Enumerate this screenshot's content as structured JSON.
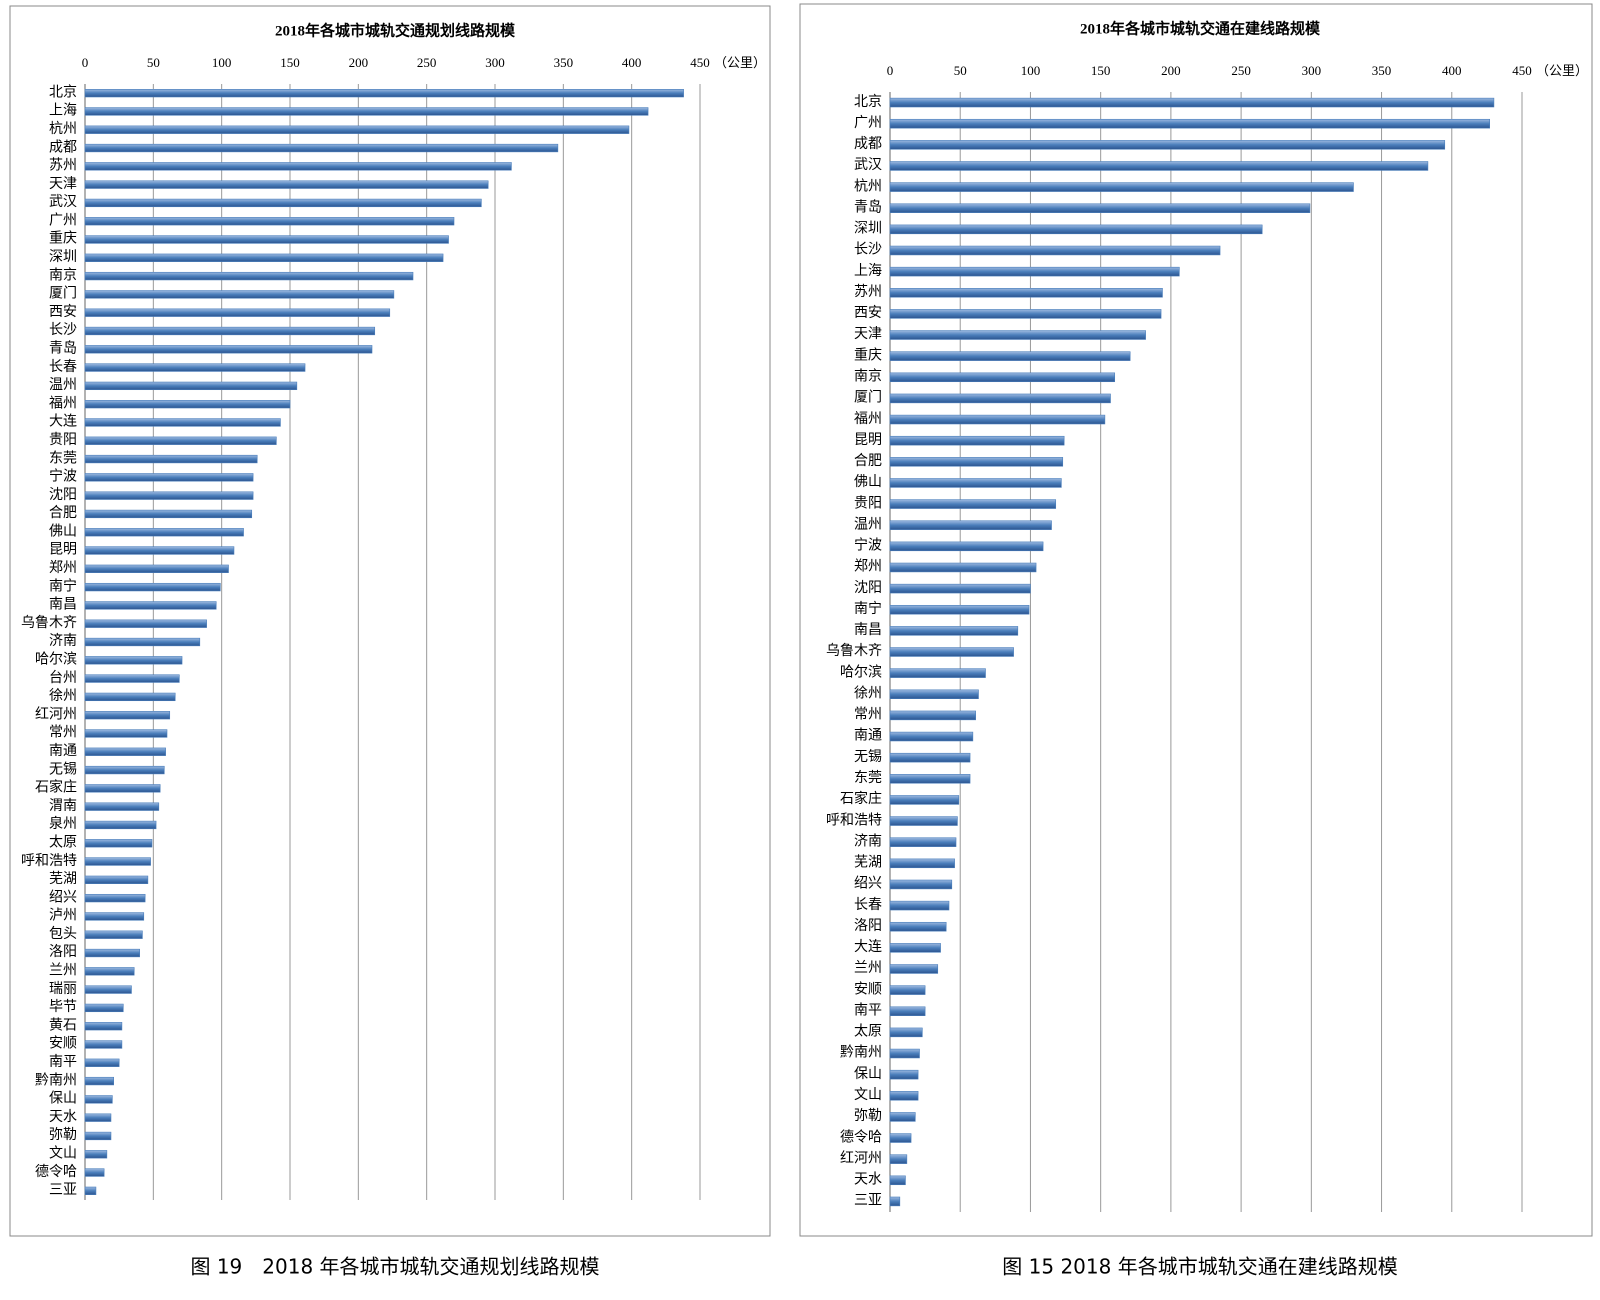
{
  "chart_data": [
    {
      "type": "bar",
      "orientation": "horizontal",
      "title": "2018年各城市城轨交通规划线路规模",
      "caption": "图 19　2018 年各城市城轨交通规划线路规模",
      "unit_label": "（公里）",
      "color": "#4a7ebb",
      "categories": [
        "北京",
        "上海",
        "杭州",
        "成都",
        "苏州",
        "天津",
        "武汉",
        "广州",
        "重庆",
        "深圳",
        "南京",
        "厦门",
        "西安",
        "长沙",
        "青岛",
        "长春",
        "温州",
        "福州",
        "大连",
        "贵阳",
        "东莞",
        "宁波",
        "沈阳",
        "合肥",
        "佛山",
        "昆明",
        "郑州",
        "南宁",
        "南昌",
        "乌鲁木齐",
        "济南",
        "哈尔滨",
        "台州",
        "徐州",
        "红河州",
        "常州",
        "南通",
        "无锡",
        "石家庄",
        "渭南",
        "泉州",
        "太原",
        "呼和浩特",
        "芜湖",
        "绍兴",
        "泸州",
        "包头",
        "洛阳",
        "兰州",
        "瑞丽",
        "毕节",
        "黄石",
        "安顺",
        "南平",
        "黔南州",
        "保山",
        "天水",
        "弥勒",
        "文山",
        "德令哈",
        "三亚"
      ],
      "values": [
        438,
        412,
        398,
        346,
        312,
        295,
        290,
        270,
        266,
        262,
        240,
        226,
        223,
        212,
        210,
        161,
        155,
        150,
        143,
        140,
        126,
        123,
        123,
        122,
        116,
        109,
        105,
        99,
        96,
        89,
        84,
        71,
        69,
        66,
        62,
        60,
        59,
        58,
        55,
        54,
        52,
        49,
        48,
        46,
        44,
        43,
        42,
        40,
        36,
        34,
        28,
        27,
        27,
        25,
        21,
        20,
        19,
        19,
        16,
        14,
        8
      ],
      "xlim": [
        0,
        450
      ],
      "xticks": [
        0,
        50,
        100,
        150,
        200,
        250,
        300,
        350,
        400,
        450
      ],
      "grid": true
    },
    {
      "type": "bar",
      "orientation": "horizontal",
      "title": "2018年各城市城轨交通在建线路规模",
      "caption": "图 15 2018 年各城市城轨交通在建线路规模",
      "unit_label": "（公里）",
      "color": "#4a7ebb",
      "categories": [
        "北京",
        "广州",
        "成都",
        "武汉",
        "杭州",
        "青岛",
        "深圳",
        "长沙",
        "上海",
        "苏州",
        "西安",
        "天津",
        "重庆",
        "南京",
        "厦门",
        "福州",
        "昆明",
        "合肥",
        "佛山",
        "贵阳",
        "温州",
        "宁波",
        "郑州",
        "沈阳",
        "南宁",
        "南昌",
        "乌鲁木齐",
        "哈尔滨",
        "徐州",
        "常州",
        "南通",
        "无锡",
        "东莞",
        "石家庄",
        "呼和浩特",
        "济南",
        "芜湖",
        "绍兴",
        "长春",
        "洛阳",
        "大连",
        "兰州",
        "安顺",
        "南平",
        "太原",
        "黔南州",
        "保山",
        "文山",
        "弥勒",
        "德令哈",
        "红河州",
        "天水",
        "三亚"
      ],
      "values": [
        430,
        427,
        395,
        383,
        330,
        299,
        265,
        235,
        206,
        194,
        193,
        182,
        171,
        160,
        157,
        153,
        124,
        123,
        122,
        118,
        115,
        109,
        104,
        100,
        99,
        91,
        88,
        68,
        63,
        61,
        59,
        57,
        57,
        49,
        48,
        47,
        46,
        44,
        42,
        40,
        36,
        34,
        25,
        25,
        23,
        21,
        20,
        20,
        18,
        15,
        12,
        11,
        7
      ],
      "xlim": [
        0,
        450
      ],
      "xticks": [
        0,
        50,
        100,
        150,
        200,
        250,
        300,
        350,
        400,
        450
      ],
      "grid": true
    }
  ]
}
